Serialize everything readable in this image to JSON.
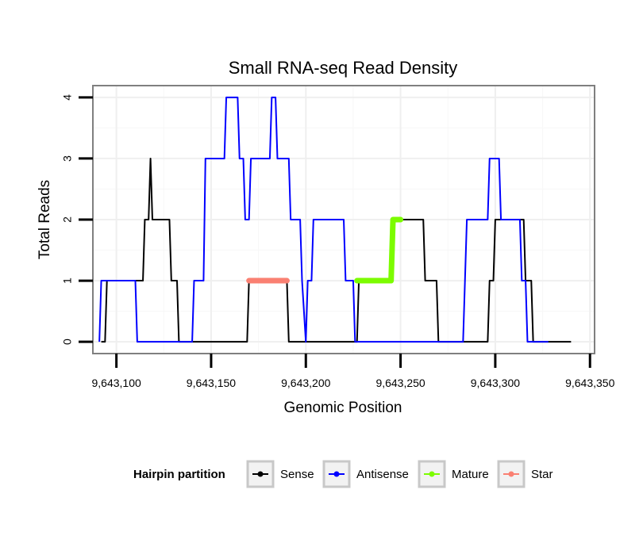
{
  "chart_data": {
    "type": "line",
    "title": "Small RNA-seq Read Density",
    "xlabel": "Genomic Position",
    "ylabel": "Total Reads",
    "xlim": [
      9643088,
      9643352
    ],
    "ylim": [
      -0.18,
      4.18
    ],
    "x_ticks": [
      9643100,
      9643150,
      9643200,
      9643250,
      9643300,
      9643350
    ],
    "x_tick_labels": [
      "9,643,100",
      "9,643,150",
      "9,643,200",
      "9,643,250",
      "9,643,300",
      "9,643,350"
    ],
    "y_ticks": [
      0,
      1,
      2,
      3,
      4
    ],
    "y_tick_labels": [
      "0",
      "1",
      "2",
      "3",
      "4"
    ],
    "grid": true,
    "legend": {
      "title": "Hairpin partition",
      "position": "bottom",
      "entries": [
        {
          "label": "Sense",
          "color": "#000000"
        },
        {
          "label": "Antisense",
          "color": "#0000ff"
        },
        {
          "label": "Mature",
          "color": "#7cfc00"
        },
        {
          "label": "Star",
          "color": "#fa8072"
        }
      ]
    },
    "series": [
      {
        "name": "Sense",
        "color": "#000000",
        "points": [
          [
            9643092,
            0
          ],
          [
            9643094,
            0
          ],
          [
            9643095,
            1
          ],
          [
            9643114,
            1
          ],
          [
            9643115,
            2
          ],
          [
            9643117,
            2
          ],
          [
            9643118,
            3
          ],
          [
            9643119,
            2
          ],
          [
            9643128,
            2
          ],
          [
            9643129,
            1
          ],
          [
            9643132,
            1
          ],
          [
            9643133,
            0
          ],
          [
            9643169,
            0
          ],
          [
            9643170,
            1
          ],
          [
            9643190,
            1
          ],
          [
            9643191,
            0
          ],
          [
            9643227,
            0
          ],
          [
            9643228,
            1
          ],
          [
            9643245,
            1
          ],
          [
            9643246,
            2
          ],
          [
            9643262,
            2
          ],
          [
            9643263,
            1
          ],
          [
            9643269,
            1
          ],
          [
            9643270,
            0
          ],
          [
            9643296,
            0
          ],
          [
            9643297,
            1
          ],
          [
            9643299,
            1
          ],
          [
            9643300,
            2
          ],
          [
            9643315,
            2
          ],
          [
            9643316,
            1
          ],
          [
            9643319,
            1
          ],
          [
            9643320,
            0
          ],
          [
            9643340,
            0
          ]
        ]
      },
      {
        "name": "Antisense",
        "color": "#0000ff",
        "points": [
          [
            9643091,
            0
          ],
          [
            9643092,
            1
          ],
          [
            9643110,
            1
          ],
          [
            9643111,
            0
          ],
          [
            9643140,
            0
          ],
          [
            9643141,
            1
          ],
          [
            9643146,
            1
          ],
          [
            9643147,
            3
          ],
          [
            9643157,
            3
          ],
          [
            9643158,
            4
          ],
          [
            9643164,
            4
          ],
          [
            9643165,
            3
          ],
          [
            9643167,
            3
          ],
          [
            9643168,
            2
          ],
          [
            9643170,
            2
          ],
          [
            9643171,
            3
          ],
          [
            9643181,
            3
          ],
          [
            9643182,
            4
          ],
          [
            9643184,
            4
          ],
          [
            9643185,
            3
          ],
          [
            9643191,
            3
          ],
          [
            9643192,
            2
          ],
          [
            9643197,
            2
          ],
          [
            9643198,
            1
          ],
          [
            9643200,
            0
          ],
          [
            9643201,
            1
          ],
          [
            9643203,
            1
          ],
          [
            9643204,
            2
          ],
          [
            9643220,
            2
          ],
          [
            9643221,
            1
          ],
          [
            9643225,
            1
          ],
          [
            9643226,
            0
          ],
          [
            9643270,
            0
          ],
          [
            9643283,
            0
          ],
          [
            9643284,
            1
          ],
          [
            9643285,
            2
          ],
          [
            9643296,
            2
          ],
          [
            9643297,
            3
          ],
          [
            9643302,
            3
          ],
          [
            9643303,
            2
          ],
          [
            9643313,
            2
          ],
          [
            9643314,
            1
          ],
          [
            9643316,
            1
          ],
          [
            9643317,
            0
          ],
          [
            9643328,
            0
          ]
        ]
      },
      {
        "name": "Mature",
        "color": "#7cfc00",
        "points": [
          [
            9643227,
            1
          ],
          [
            9643245,
            1
          ],
          [
            9643246,
            2
          ],
          [
            9643250,
            2
          ]
        ]
      },
      {
        "name": "Star",
        "color": "#fa8072",
        "points": [
          [
            9643170,
            1
          ],
          [
            9643190,
            1
          ]
        ]
      }
    ]
  }
}
